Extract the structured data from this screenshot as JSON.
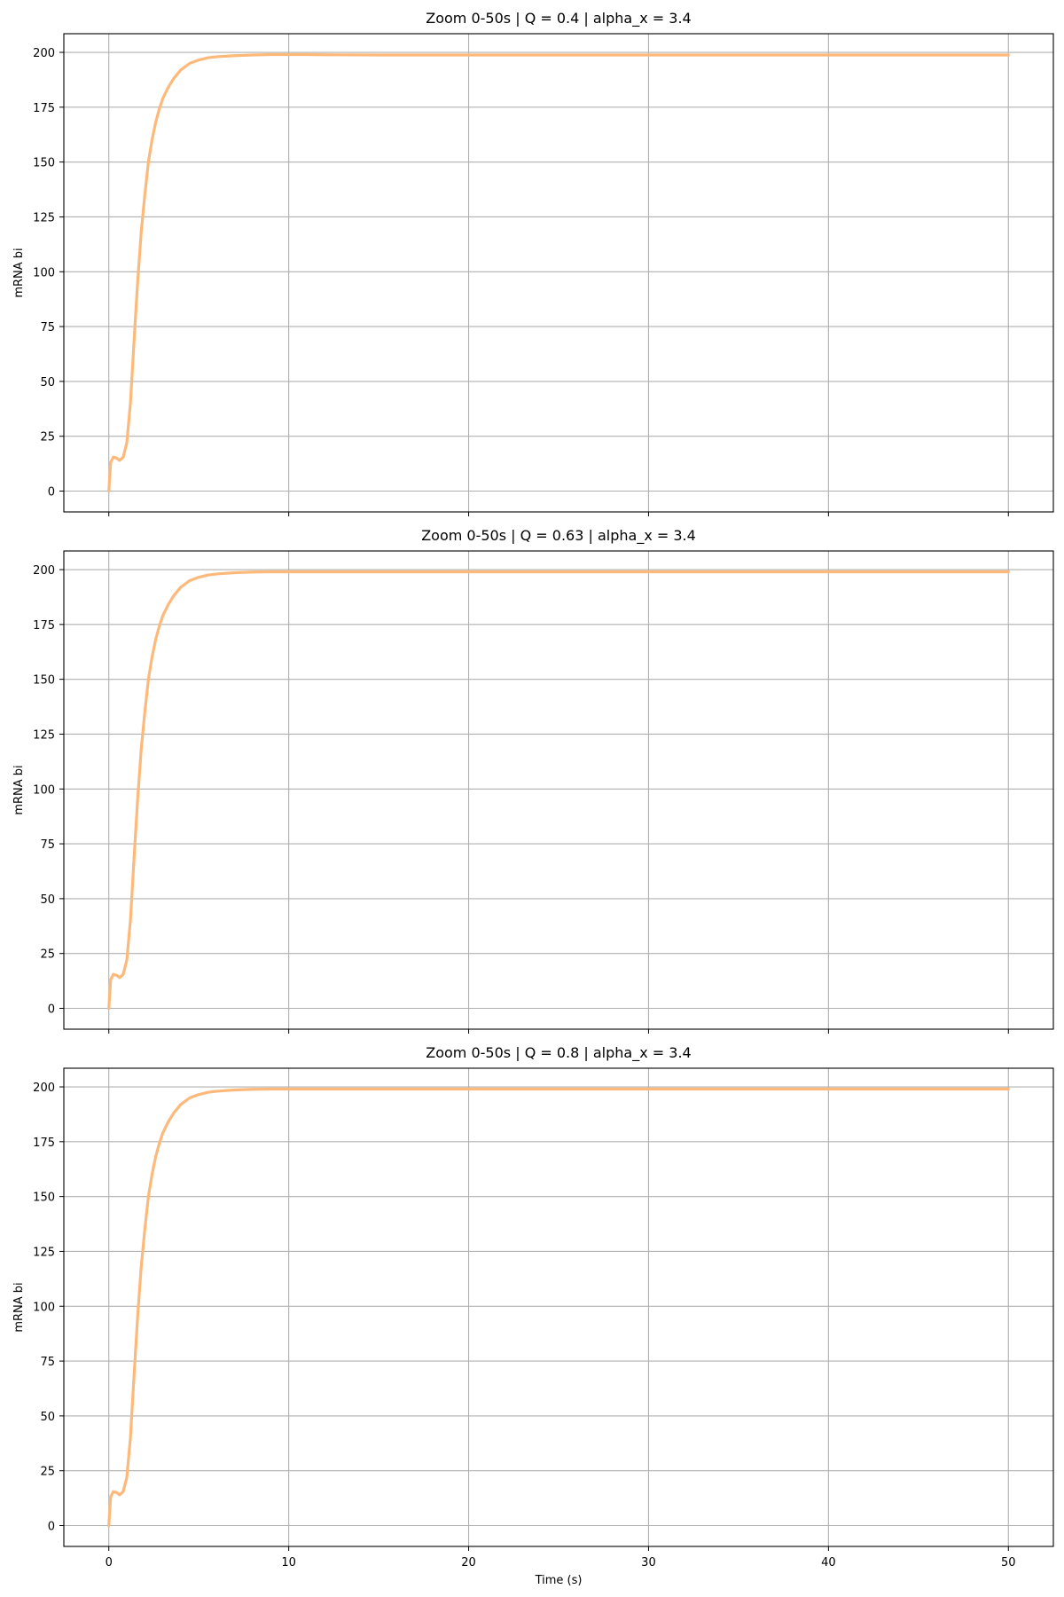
{
  "chart_data": [
    {
      "type": "line",
      "title": "Zoom 0-50s | Q = 0.4 | alpha_x = 3.4",
      "xlabel": "",
      "ylabel": "mRNA bi",
      "xlim": [
        -2.5,
        52.5
      ],
      "ylim": [
        -9.5,
        208.5
      ],
      "xticks": [
        0,
        10,
        20,
        30,
        40,
        50
      ],
      "xtick_labels_visible": false,
      "yticks": [
        0,
        25,
        50,
        75,
        100,
        125,
        150,
        175,
        200
      ],
      "grid": true,
      "color": "#fdb97a",
      "series": [
        {
          "x": [
            0,
            0.1,
            0.25,
            0.45,
            0.6,
            0.8,
            1.0,
            1.2,
            1.4,
            1.6,
            1.8,
            2.0,
            2.2,
            2.4,
            2.6,
            2.8,
            3.0,
            3.3,
            3.6,
            4.0,
            4.5,
            5.0,
            5.5,
            6.0,
            7.0,
            8.0,
            9.0,
            10.0,
            11.0,
            12.0,
            15.0,
            20.0,
            30.0,
            40.0,
            50.0
          ],
          "y": [
            0,
            13,
            15.5,
            15,
            14,
            15.5,
            22,
            40,
            68,
            95,
            118,
            135,
            150,
            160,
            168,
            174,
            179,
            184,
            188,
            192,
            195,
            196.5,
            197.5,
            198,
            198.5,
            198.8,
            199,
            199,
            199,
            198.9,
            198.8,
            198.8,
            198.8,
            198.8,
            198.8
          ]
        }
      ]
    },
    {
      "type": "line",
      "title": "Zoom 0-50s | Q = 0.63 | alpha_x = 3.4",
      "xlabel": "",
      "ylabel": "mRNA bi",
      "xlim": [
        -2.5,
        52.5
      ],
      "ylim": [
        -9.5,
        208.5
      ],
      "xticks": [
        0,
        10,
        20,
        30,
        40,
        50
      ],
      "xtick_labels_visible": false,
      "yticks": [
        0,
        25,
        50,
        75,
        100,
        125,
        150,
        175,
        200
      ],
      "grid": true,
      "color": "#fdb97a",
      "series": [
        {
          "x": [
            0,
            0.1,
            0.25,
            0.45,
            0.6,
            0.8,
            1.0,
            1.2,
            1.4,
            1.6,
            1.8,
            2.0,
            2.2,
            2.4,
            2.6,
            2.8,
            3.0,
            3.3,
            3.6,
            4.0,
            4.5,
            5.0,
            5.5,
            6.0,
            7.0,
            8.0,
            9.0,
            10.0,
            11.0,
            12.0,
            15.0,
            20.0,
            30.0,
            40.0,
            50.0
          ],
          "y": [
            0,
            13,
            15.5,
            15,
            14,
            15.5,
            22,
            40,
            68,
            95,
            118,
            135,
            150,
            160,
            168,
            174,
            179,
            184,
            188,
            192,
            195,
            196.5,
            197.5,
            198,
            198.6,
            198.9,
            199,
            199,
            199,
            199,
            199,
            199,
            199,
            199,
            199
          ]
        }
      ]
    },
    {
      "type": "line",
      "title": "Zoom 0-50s | Q = 0.8 | alpha_x = 3.4",
      "xlabel": "Time (s)",
      "ylabel": "mRNA bi",
      "xlim": [
        -2.5,
        52.5
      ],
      "ylim": [
        -9.5,
        208.5
      ],
      "xticks": [
        0,
        10,
        20,
        30,
        40,
        50
      ],
      "xtick_labels_visible": true,
      "yticks": [
        0,
        25,
        50,
        75,
        100,
        125,
        150,
        175,
        200
      ],
      "grid": true,
      "color": "#fdb97a",
      "series": [
        {
          "x": [
            0,
            0.1,
            0.25,
            0.45,
            0.6,
            0.8,
            1.0,
            1.2,
            1.4,
            1.6,
            1.8,
            2.0,
            2.2,
            2.4,
            2.6,
            2.8,
            3.0,
            3.3,
            3.6,
            4.0,
            4.5,
            5.0,
            5.5,
            6.0,
            7.0,
            8.0,
            9.0,
            10.0,
            11.0,
            12.0,
            15.0,
            20.0,
            30.0,
            40.0,
            50.0
          ],
          "y": [
            0,
            13,
            15.5,
            15,
            14,
            15.5,
            22,
            40,
            68,
            95,
            118,
            135,
            150,
            160,
            168,
            174,
            179,
            184,
            188,
            192,
            195,
            196.5,
            197.5,
            198,
            198.6,
            198.9,
            199,
            199,
            199,
            199,
            199,
            199,
            199,
            199,
            199
          ]
        }
      ]
    }
  ]
}
